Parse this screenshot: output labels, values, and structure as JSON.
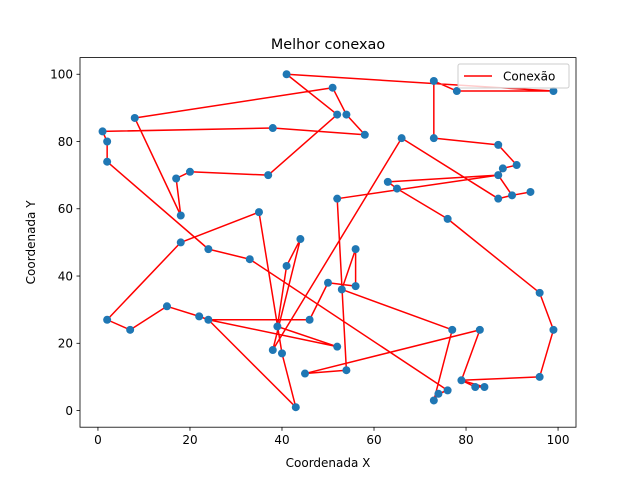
{
  "chart_data": {
    "type": "scatter",
    "title": "Melhor conexao",
    "xlabel": "Coordenada X",
    "ylabel": "Coordenada Y",
    "xlim": [
      -3.9,
      103.9
    ],
    "ylim": [
      -4.95,
      104.95
    ],
    "xticks": [
      0,
      20,
      40,
      60,
      80,
      100
    ],
    "yticks": [
      0,
      20,
      40,
      60,
      80,
      100
    ],
    "grid": false,
    "legend": {
      "position": "top-right",
      "entries": [
        "Conexão"
      ]
    },
    "colors": {
      "points": "#1f77b4",
      "line": "#ff0000"
    },
    "series": [
      {
        "name": "Conexão",
        "points": [
          [
            99,
            95
          ],
          [
            78,
            95
          ],
          [
            73,
            98
          ],
          [
            73,
            81
          ],
          [
            87,
            79
          ],
          [
            91,
            73
          ],
          [
            88,
            72
          ],
          [
            87,
            70
          ],
          [
            63,
            68
          ],
          [
            65,
            66
          ],
          [
            76,
            57
          ],
          [
            96,
            35
          ],
          [
            99,
            24
          ],
          [
            96,
            10
          ],
          [
            79,
            9
          ],
          [
            82,
            7
          ],
          [
            84,
            7
          ],
          [
            79,
            9
          ],
          [
            83,
            24
          ],
          [
            45,
            11
          ],
          [
            54,
            12
          ],
          [
            52,
            63
          ],
          [
            87,
            70
          ],
          [
            90,
            64
          ],
          [
            94,
            65
          ],
          [
            90,
            64
          ],
          [
            87,
            63
          ],
          [
            66,
            81
          ],
          [
            38,
            18
          ],
          [
            44,
            51
          ],
          [
            41,
            43
          ],
          [
            39,
            25
          ],
          [
            52,
            19
          ],
          [
            24,
            27
          ],
          [
            22,
            28
          ],
          [
            15,
            31
          ],
          [
            7,
            24
          ],
          [
            2,
            27
          ],
          [
            18,
            50
          ],
          [
            35,
            59
          ],
          [
            40,
            17
          ],
          [
            43,
            1
          ],
          [
            24,
            27
          ],
          [
            46,
            27
          ],
          [
            50,
            38
          ],
          [
            56,
            37
          ],
          [
            56,
            48
          ],
          [
            53,
            36
          ],
          [
            53,
            36
          ],
          [
            77,
            24
          ],
          [
            73,
            3
          ],
          [
            74,
            5
          ],
          [
            76,
            6
          ],
          [
            33,
            45
          ],
          [
            24,
            48
          ],
          [
            2,
            74
          ],
          [
            2,
            80
          ],
          [
            1,
            83
          ],
          [
            38,
            84
          ],
          [
            58,
            82
          ],
          [
            54,
            88
          ],
          [
            51,
            96
          ],
          [
            8,
            87
          ],
          [
            18,
            58
          ],
          [
            17,
            69
          ],
          [
            20,
            71
          ],
          [
            37,
            70
          ],
          [
            52,
            88
          ],
          [
            41,
            100
          ],
          [
            99,
            95
          ]
        ]
      }
    ]
  }
}
